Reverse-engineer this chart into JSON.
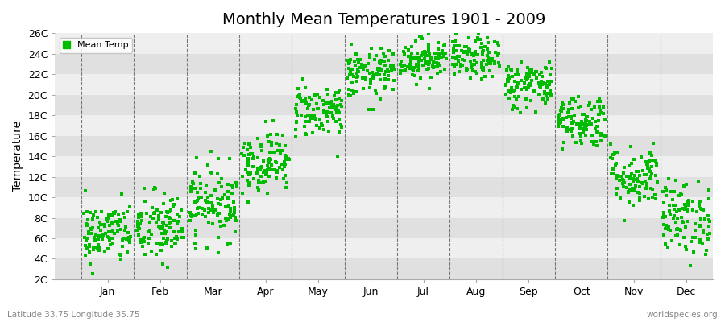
{
  "title": "Monthly Mean Temperatures 1901 - 2009",
  "ylabel": "Temperature",
  "xlabel_bottom_left": "Latitude 33.75 Longitude 35.75",
  "xlabel_bottom_right": "worldspecies.org",
  "legend_label": "Mean Temp",
  "dot_color": "#00bb00",
  "bg_color": "#ffffff",
  "plot_bg_color_light": "#efefef",
  "plot_bg_color_dark": "#e0e0e0",
  "dashed_line_color": "#777777",
  "ytick_labels": [
    "2C",
    "4C",
    "6C",
    "8C",
    "10C",
    "12C",
    "14C",
    "16C",
    "18C",
    "20C",
    "22C",
    "24C",
    "26C"
  ],
  "ytick_values": [
    2,
    4,
    6,
    8,
    10,
    12,
    14,
    16,
    18,
    20,
    22,
    24,
    26
  ],
  "months": [
    "Jan",
    "Feb",
    "Mar",
    "Apr",
    "May",
    "Jun",
    "Jul",
    "Aug",
    "Sep",
    "Oct",
    "Nov",
    "Dec"
  ],
  "ylim": [
    2,
    26
  ],
  "n_years": 109,
  "monthly_means": [
    6.5,
    7.0,
    9.5,
    13.5,
    18.5,
    22.0,
    23.5,
    23.5,
    21.0,
    17.5,
    12.0,
    8.0
  ],
  "monthly_stds": [
    1.5,
    1.8,
    1.8,
    1.5,
    1.3,
    1.2,
    1.0,
    1.0,
    1.2,
    1.3,
    1.5,
    1.8
  ],
  "seed": 42,
  "title_fontsize": 14,
  "tick_fontsize": 9,
  "ylabel_fontsize": 10,
  "dot_size": 5
}
